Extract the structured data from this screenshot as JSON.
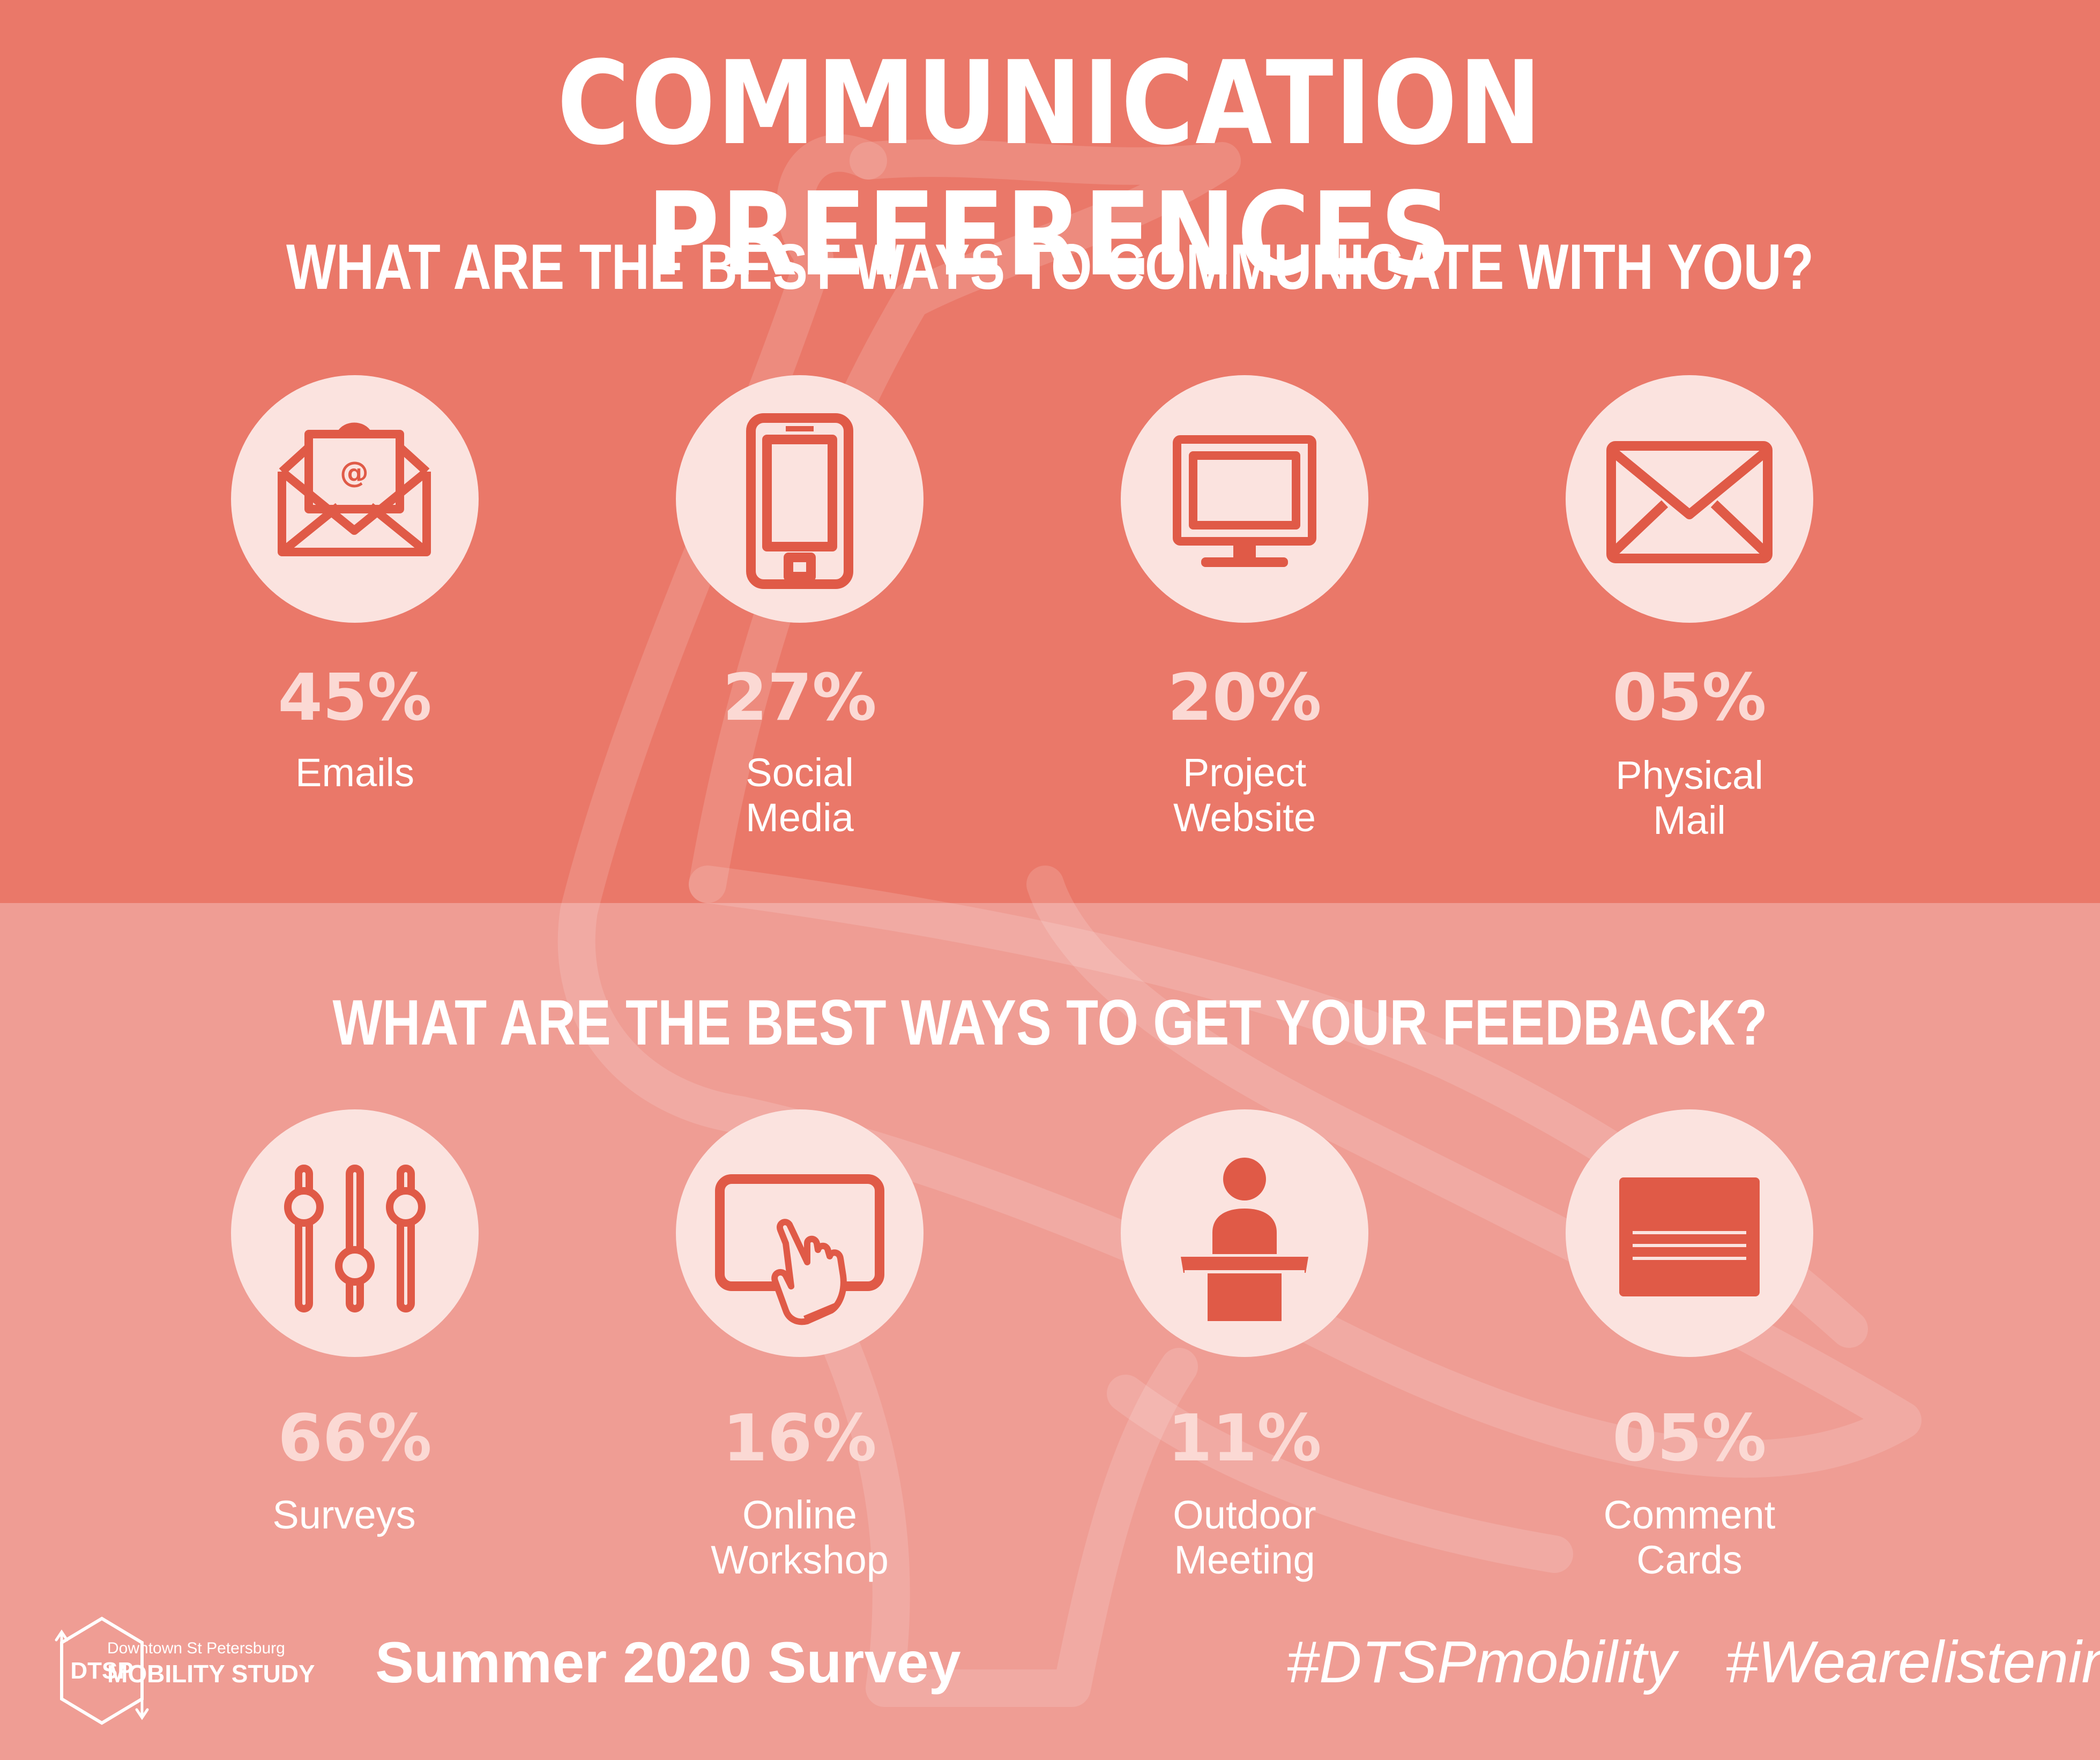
{
  "title": "COMMUNICATION PREFERENCES",
  "section1": {
    "question": "WHAT ARE THE BEST WAYS TO COMMUNICATE WITH YOU?",
    "items": [
      {
        "percent": "45%",
        "label": "Emails",
        "icon": "email-icon"
      },
      {
        "percent": "27%",
        "label": "Social Media",
        "icon": "smartphone-icon"
      },
      {
        "percent": "20%",
        "label": "Project Website",
        "icon": "monitor-icon"
      },
      {
        "percent": "05%",
        "label": "Physical Mail",
        "icon": "envelope-icon"
      }
    ]
  },
  "section2": {
    "question": "WHAT ARE THE BEST WAYS TO GET YOUR FEEDBACK?",
    "items": [
      {
        "percent": "66%",
        "label": "Surveys",
        "icon": "sliders-icon"
      },
      {
        "percent": "16%",
        "label": "Online Workshop",
        "icon": "touchscreen-icon"
      },
      {
        "percent": "11%",
        "label": "Outdoor Meeting",
        "icon": "podium-icon"
      },
      {
        "percent": "05%",
        "label": "Comment Cards",
        "icon": "card-icon"
      }
    ]
  },
  "footer": {
    "logo_text": "DTSP",
    "logo_small": "Downtown St Petersburg",
    "logo_big": "MOBILITY STUDY",
    "survey": "Summer 2020 Survey",
    "hashtags": "#DTSPmobility   #Wearelistening"
  },
  "colors": {
    "top_band": "#ea7869",
    "bottom_band": "#ef9d94",
    "icon": "#e05a47",
    "circle": "#fbe3df",
    "percent": "#fbd9d4"
  }
}
